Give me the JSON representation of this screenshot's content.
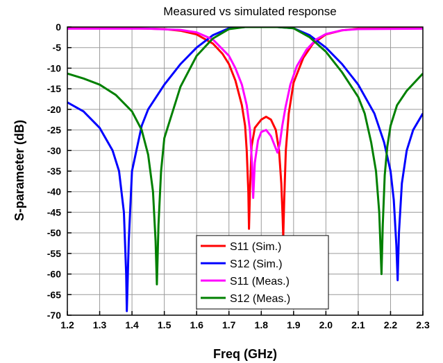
{
  "chart_data": {
    "type": "line",
    "title": "Measured vs simulated response",
    "xlabel": "Freq (GHz)",
    "ylabel": "S-parameter (dB)",
    "xlim": [
      1.2,
      2.3
    ],
    "ylim": [
      -70,
      0
    ],
    "xticks": [
      1.2,
      1.3,
      1.4,
      1.5,
      1.6,
      1.7,
      1.8,
      1.9,
      2.0,
      2.1,
      2.2,
      2.3
    ],
    "xtick_labels": [
      "1.2",
      "1.3",
      "1.4",
      "1.5",
      "1.6",
      "1.7",
      "1.8",
      "1.9",
      "2.0",
      "2.1",
      "2.2",
      "2.3"
    ],
    "yticks": [
      0,
      -5,
      -10,
      -15,
      -20,
      -25,
      -30,
      -35,
      -40,
      -45,
      -50,
      -55,
      -60,
      -65,
      -70
    ],
    "ytick_labels": [
      "0",
      "-5",
      "-10",
      "-15",
      "-20",
      "-25",
      "-30",
      "-35",
      "-40",
      "-45",
      "-50",
      "-55",
      "-60",
      "-65",
      "-70"
    ],
    "grid": true,
    "legend_position": "bottom-center",
    "series": [
      {
        "name": "S11 (Sim.)",
        "color": "#ff0000",
        "x": [
          1.2,
          1.4,
          1.5,
          1.55,
          1.6,
          1.65,
          1.68,
          1.7,
          1.72,
          1.74,
          1.75,
          1.755,
          1.76,
          1.762,
          1.765,
          1.77,
          1.78,
          1.8,
          1.815,
          1.83,
          1.845,
          1.855,
          1.862,
          1.866,
          1.868,
          1.871,
          1.876,
          1.885,
          1.9,
          1.93,
          1.96,
          2.0,
          2.05,
          2.1,
          2.3
        ],
        "y": [
          -0.3,
          -0.3,
          -0.5,
          -0.9,
          -1.8,
          -4.0,
          -6.5,
          -9.0,
          -13.0,
          -19.0,
          -24.0,
          -30.0,
          -40.0,
          -49.0,
          -40.0,
          -29.0,
          -24.5,
          -22.5,
          -21.8,
          -22.5,
          -25.0,
          -30.0,
          -38.0,
          -46.0,
          -51.0,
          -42.0,
          -30.0,
          -21.0,
          -13.5,
          -7.5,
          -4.0,
          -1.8,
          -0.8,
          -0.4,
          -0.3
        ]
      },
      {
        "name": "S12 (Sim.)",
        "color": "#0000ff",
        "x": [
          1.2,
          1.25,
          1.3,
          1.34,
          1.36,
          1.375,
          1.382,
          1.384,
          1.39,
          1.4,
          1.43,
          1.45,
          1.5,
          1.55,
          1.6,
          1.65,
          1.7,
          1.75,
          1.8,
          1.85,
          1.9,
          1.95,
          2.0,
          2.05,
          2.1,
          2.15,
          2.18,
          2.2,
          2.21,
          2.218,
          2.222,
          2.226,
          2.235,
          2.25,
          2.27,
          2.3
        ],
        "y": [
          -18.3,
          -20.5,
          -24.5,
          -30.0,
          -35.0,
          -45.0,
          -60.0,
          -69.0,
          -52.0,
          -35.0,
          -24.0,
          -20.0,
          -14.0,
          -9.0,
          -5.0,
          -2.0,
          -0.3,
          0.0,
          0.0,
          0.0,
          -0.3,
          -2.0,
          -5.0,
          -9.0,
          -14.0,
          -21.0,
          -28.0,
          -35.0,
          -42.0,
          -53.0,
          -61.5,
          -50.0,
          -38.0,
          -30.0,
          -25.0,
          -21.0
        ]
      },
      {
        "name": "S11 (Meas.)",
        "color": "#ff00ff",
        "x": [
          1.2,
          1.45,
          1.55,
          1.6,
          1.65,
          1.7,
          1.72,
          1.74,
          1.755,
          1.765,
          1.772,
          1.775,
          1.78,
          1.79,
          1.8,
          1.815,
          1.83,
          1.84,
          1.85,
          1.857,
          1.865,
          1.875,
          1.89,
          1.91,
          1.94,
          1.97,
          2.0,
          2.05,
          2.1,
          2.3
        ],
        "y": [
          -0.4,
          -0.4,
          -0.7,
          -1.3,
          -3.0,
          -7.0,
          -10.0,
          -14.0,
          -19.0,
          -25.0,
          -34.0,
          -41.5,
          -33.0,
          -27.5,
          -25.5,
          -25.0,
          -26.5,
          -28.5,
          -30.5,
          -28.5,
          -24.0,
          -19.5,
          -14.0,
          -9.5,
          -5.5,
          -3.0,
          -1.7,
          -0.8,
          -0.5,
          -0.4
        ]
      },
      {
        "name": "S12 (Meas.)",
        "color": "#008000",
        "x": [
          1.2,
          1.25,
          1.3,
          1.35,
          1.4,
          1.43,
          1.45,
          1.465,
          1.473,
          1.477,
          1.482,
          1.49,
          1.5,
          1.55,
          1.6,
          1.65,
          1.7,
          1.75,
          1.8,
          1.85,
          1.9,
          1.95,
          2.0,
          2.05,
          2.1,
          2.12,
          2.14,
          2.155,
          2.165,
          2.172,
          2.176,
          2.182,
          2.19,
          2.2,
          2.22,
          2.25,
          2.3
        ],
        "y": [
          -11.3,
          -12.5,
          -14.0,
          -16.5,
          -20.5,
          -25.0,
          -31.0,
          -40.0,
          -52.0,
          -62.5,
          -48.0,
          -35.0,
          -27.0,
          -14.5,
          -7.0,
          -2.8,
          -0.5,
          0.0,
          0.0,
          0.0,
          -0.3,
          -2.5,
          -6.0,
          -11.0,
          -17.0,
          -21.0,
          -28.0,
          -35.0,
          -45.0,
          -60.0,
          -48.0,
          -36.0,
          -29.0,
          -24.0,
          -19.0,
          -15.5,
          -11.3
        ]
      }
    ]
  }
}
